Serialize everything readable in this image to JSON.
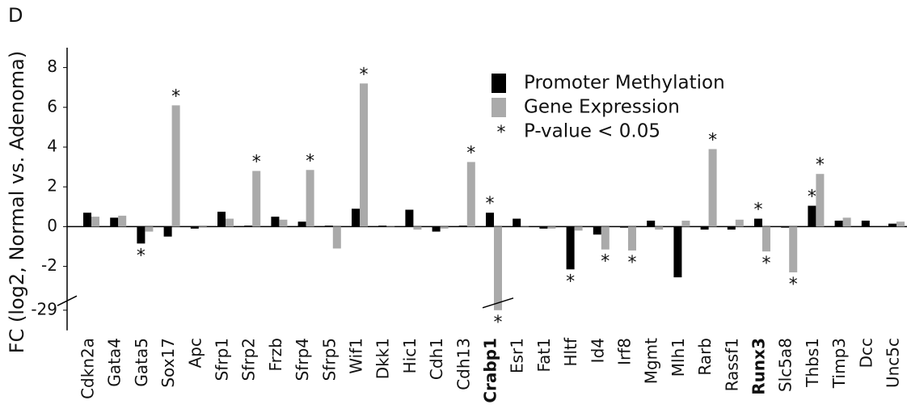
{
  "chart_data": {
    "type": "bar",
    "panel_label": "D",
    "y_label": "FC  (log2, Normal vs. Adenoma)",
    "categories": [
      "Cdkn2a",
      "Gata4",
      "Gata5",
      "Sox17",
      "Apc",
      "Sfrp1",
      "Sfrp2",
      "Frzb",
      "Sfrp4",
      "Sfrp5",
      "Wif1",
      "Dkk1",
      "Hic1",
      "Cdh1",
      "Cdh13",
      "Crabp1",
      "Esr1",
      "Fat1",
      "Hltf",
      "Id4",
      "Irf8",
      "Mgmt",
      "Mlh1",
      "Rarb",
      "Rassf1",
      "Runx3",
      "Slc5a8",
      "Thbs1",
      "Timp3",
      "Dcc",
      "Unc5c"
    ],
    "bold_categories": [
      15,
      25
    ],
    "series": [
      {
        "name": "Promoter Methylation",
        "color": "#000000",
        "values": [
          0.7,
          0.45,
          -0.85,
          -0.5,
          -0.1,
          0.75,
          0.05,
          0.5,
          0.25,
          0.05,
          0.9,
          0.05,
          0.85,
          -0.25,
          0.05,
          0.7,
          0.4,
          -0.1,
          -2.15,
          -0.4,
          -0.05,
          0.3,
          -2.55,
          -0.15,
          -0.15,
          0.4,
          -0.05,
          1.05,
          0.3,
          0.3,
          0.15
        ],
        "significant": [
          false,
          false,
          true,
          false,
          false,
          false,
          false,
          false,
          false,
          false,
          false,
          false,
          false,
          false,
          false,
          true,
          false,
          false,
          true,
          false,
          false,
          false,
          false,
          false,
          false,
          true,
          false,
          true,
          false,
          false,
          false
        ]
      },
      {
        "name": "Gene Expression",
        "color": "#aaaaaa",
        "values": [
          0.5,
          0.55,
          -0.25,
          6.1,
          -0.05,
          0.4,
          2.8,
          0.35,
          2.85,
          -1.1,
          7.2,
          0.05,
          -0.15,
          -0.1,
          3.25,
          -29,
          0.05,
          -0.1,
          -0.2,
          -1.15,
          -1.2,
          -0.15,
          0.3,
          3.9,
          0.35,
          -1.25,
          -2.3,
          2.65,
          0.45,
          0.0,
          0.25
        ],
        "significant": [
          false,
          false,
          false,
          true,
          false,
          false,
          true,
          false,
          true,
          false,
          true,
          false,
          false,
          false,
          true,
          true,
          false,
          false,
          false,
          true,
          true,
          false,
          false,
          true,
          false,
          true,
          true,
          true,
          false,
          false,
          false
        ]
      }
    ],
    "significance_marker": "*",
    "significance_label": "P-value < 0.05",
    "ylim": [
      -29,
      9
    ],
    "yticks": [
      -29,
      -2,
      0,
      2,
      4,
      6,
      8
    ],
    "legend": "upper-center"
  }
}
